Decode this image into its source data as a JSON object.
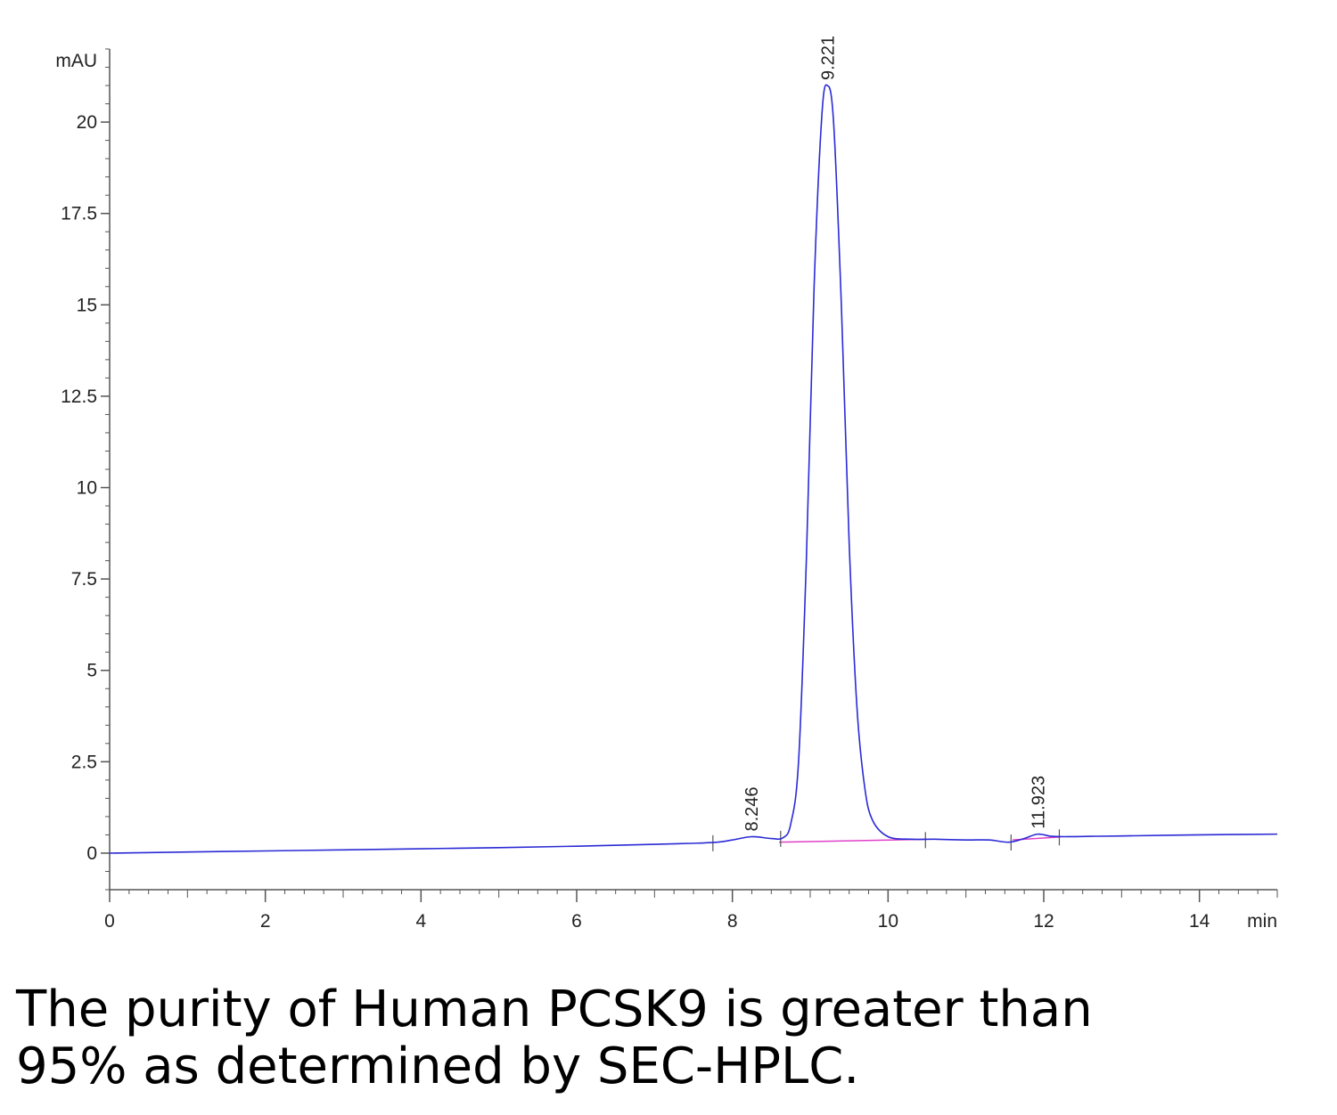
{
  "chart_data": {
    "type": "line",
    "ylabel": "mAU",
    "xlabel": "min",
    "xlim": [
      0,
      15
    ],
    "ylim": [
      -1,
      22
    ],
    "x_ticks": [
      0,
      2,
      4,
      6,
      8,
      10,
      12,
      14
    ],
    "x_tick_labels": [
      "0",
      "2",
      "4",
      "6",
      "8",
      "10",
      "12",
      "14"
    ],
    "y_ticks": [
      0,
      2.5,
      5,
      7.5,
      10,
      12.5,
      15,
      17.5,
      20
    ],
    "y_tick_labels": [
      "0",
      "2.5",
      "5",
      "7.5",
      "10",
      "12.5",
      "15",
      "17.5",
      "20"
    ],
    "grid": false,
    "colors": {
      "signal": "#2a2ad6",
      "baseline": "#e040c8",
      "axis": "#555555"
    },
    "series": [
      {
        "x": [
          0,
          1,
          2,
          3,
          4,
          5,
          6,
          7,
          7.5,
          7.8,
          8.0,
          8.246,
          8.5,
          8.65,
          8.75,
          8.85,
          8.95,
          9.05,
          9.15,
          9.221,
          9.3,
          9.4,
          9.5,
          9.6,
          9.7,
          9.8,
          10.0,
          10.3,
          10.6,
          11.0,
          11.3,
          11.55,
          11.75,
          11.923,
          12.1,
          12.3,
          12.6,
          13,
          14,
          15
        ],
        "y": [
          0.0,
          0.03,
          0.06,
          0.09,
          0.12,
          0.15,
          0.19,
          0.24,
          0.27,
          0.3,
          0.36,
          0.45,
          0.4,
          0.42,
          0.8,
          2.5,
          8.0,
          15.5,
          20.2,
          21.0,
          20.0,
          15.0,
          8.5,
          4.0,
          1.8,
          0.9,
          0.45,
          0.38,
          0.38,
          0.36,
          0.36,
          0.3,
          0.4,
          0.52,
          0.46,
          0.45,
          0.46,
          0.47,
          0.5,
          0.52
        ]
      }
    ],
    "baseline_segments": [
      {
        "x": [
          8.6,
          10.5
        ],
        "y": [
          0.3,
          0.38
        ]
      },
      {
        "x": [
          11.6,
          12.2
        ],
        "y": [
          0.36,
          0.44
        ]
      }
    ],
    "peaks": [
      {
        "label": "8.246",
        "x": 8.246,
        "y": 0.45
      },
      {
        "label": "9.221",
        "x": 9.221,
        "y": 21.0
      },
      {
        "label": "11.923",
        "x": 11.923,
        "y": 0.52
      }
    ],
    "integration_marks": [
      7.75,
      8.62,
      10.48,
      11.58,
      12.2
    ]
  },
  "caption": {
    "line1": "The purity of Human PCSK9 is greater than",
    "line2": "95% as determined by SEC-HPLC."
  }
}
